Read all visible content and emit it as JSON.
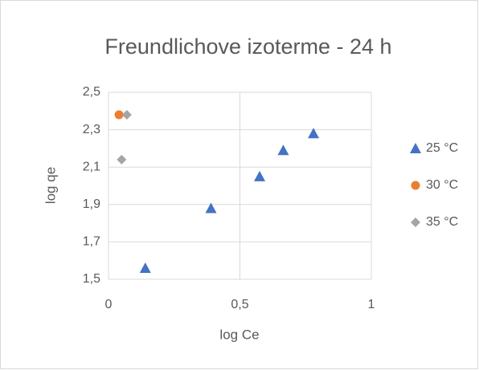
{
  "chart_data": {
    "type": "scatter",
    "title": "Freundlichove izoterme - 24 h",
    "x_label": "log Ce",
    "y_label": "log qe",
    "xlim": [
      0,
      1
    ],
    "xticks": [
      0,
      {
        "value": 0.5,
        "label": "0,5"
      },
      1
    ],
    "ylim": [
      1.5,
      2.5
    ],
    "yticks": [
      {
        "value": 1.5,
        "label": "1,5"
      },
      {
        "value": 1.7,
        "label": "1,7"
      },
      {
        "value": 1.9,
        "label": "1,9"
      },
      {
        "value": 2.1,
        "label": "2,1"
      },
      {
        "value": 2.3,
        "label": "2,3"
      },
      {
        "value": 2.5,
        "label": "2,5"
      }
    ],
    "grid": true,
    "legend": "right",
    "series": [
      {
        "name": "25 °C",
        "color": "#4472c4",
        "marker": "triangle",
        "x": [
          0.14,
          0.39,
          0.575,
          0.665,
          0.78
        ],
        "values": [
          1.56,
          1.88,
          2.05,
          2.19,
          2.28
        ]
      },
      {
        "name": "30 °C",
        "color": "#ed7d31",
        "marker": "circle",
        "x": [
          0.04
        ],
        "values": [
          2.38
        ]
      },
      {
        "name": "35 °C",
        "color": "#a5a5a5",
        "marker": "diamond",
        "x": [
          0.07,
          0.05
        ],
        "values": [
          2.38,
          2.14
        ]
      }
    ]
  }
}
